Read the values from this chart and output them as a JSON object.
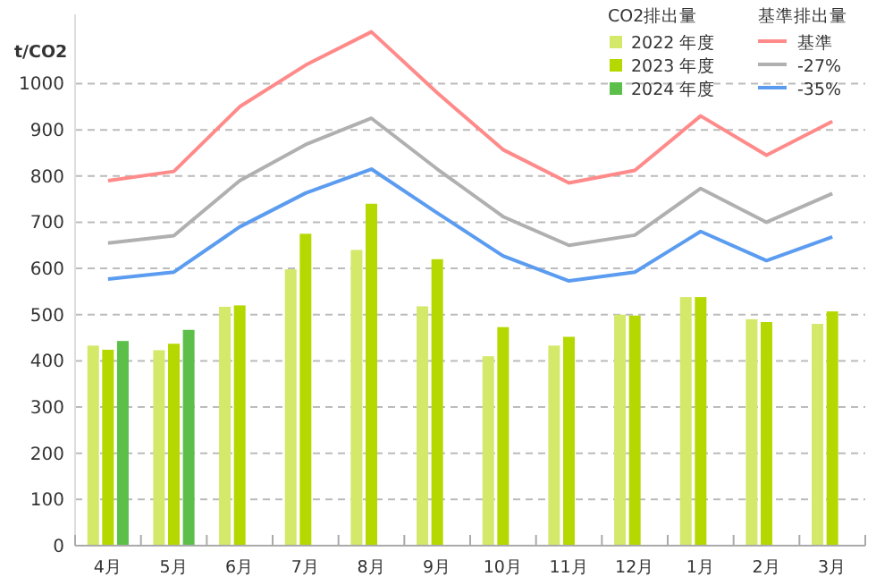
{
  "chart_data": {
    "type": "bar",
    "ylabel": "t/CO2",
    "legend_title": "CO2排出量",
    "annotations": [
      "基準排出量"
    ],
    "categories": [
      "4月",
      "5月",
      "6月",
      "7月",
      "8月",
      "9月",
      "10月",
      "11月",
      "12月",
      "1月",
      "2月",
      "3月"
    ],
    "series": [
      {
        "name": "2022 年度",
        "color": "#d4e86a",
        "values": [
          433,
          423,
          517,
          598,
          640,
          518,
          410,
          433,
          500,
          538,
          490,
          480
        ]
      },
      {
        "name": "2023 年度",
        "color": "#b5d800",
        "values": [
          424,
          437,
          520,
          675,
          740,
          620,
          473,
          452,
          498,
          538,
          484,
          507
        ]
      },
      {
        "name": "2024 年度",
        "color": "#5cbf4a",
        "values": [
          443,
          467,
          null,
          null,
          null,
          null,
          null,
          null,
          null,
          null,
          null,
          null
        ]
      },
      {
        "name": "基準",
        "type": "line",
        "color": "#ff8a8a",
        "values": [
          790,
          810,
          950,
          1040,
          1112,
          980,
          857,
          785,
          812,
          930,
          845,
          918
        ]
      },
      {
        "name": "-27%",
        "type": "line",
        "color": "#b0b0b0",
        "values": [
          655,
          671,
          790,
          868,
          925,
          815,
          712,
          650,
          672,
          773,
          700,
          762
        ]
      },
      {
        "name": "-35%",
        "type": "line",
        "color": "#5b9cf0",
        "values": [
          577,
          592,
          690,
          763,
          815,
          720,
          627,
          573,
          592,
          680,
          617,
          668
        ]
      }
    ],
    "ylim": [
      0,
      1150
    ],
    "yticks": [
      0,
      100,
      200,
      300,
      400,
      500,
      600,
      700,
      800,
      900,
      1000
    ],
    "grid": "y",
    "legend": "top right"
  }
}
